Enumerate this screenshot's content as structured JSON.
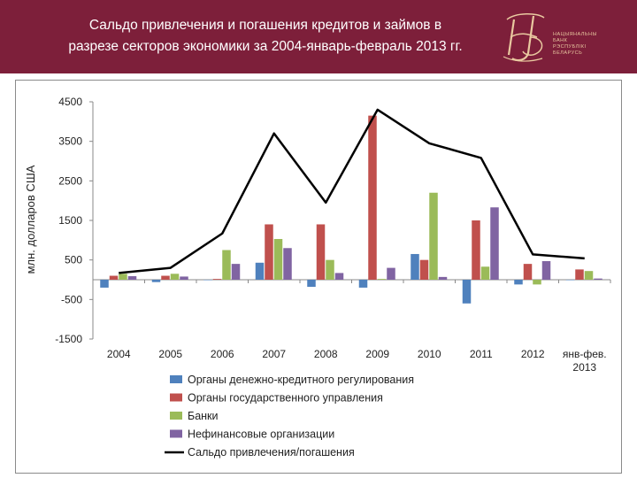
{
  "header": {
    "title_line1": "Сальдо привлечения и погашения кредитов и займов в",
    "title_line2": "разрезе секторов экономики за 2004-январь-февраль 2013 гг.",
    "logo_monogram": "НБ",
    "logo_lines": [
      "НАЦЫЯНАЛЬНЫ",
      "БАНК",
      "РЭСПУБЛІКІ",
      "БЕЛАРУСЬ"
    ]
  },
  "colors": {
    "header_bg": "#7d1f3a",
    "series1": "#4f81bd",
    "series2": "#c0504d",
    "series3": "#9bbb59",
    "series4": "#8064a2",
    "line": "#000000"
  },
  "chart_data": {
    "type": "bar",
    "ylabel": "млн. долларов США",
    "ylim": [
      -1500,
      4500
    ],
    "yticks": [
      4500,
      3500,
      2500,
      1500,
      500,
      -500,
      -1500
    ],
    "grid": false,
    "legend_position": "bottom",
    "categories": [
      "2004",
      "2005",
      "2006",
      "2007",
      "2008",
      "2009",
      "2010",
      "2011",
      "2012",
      "янв-фев. 2013"
    ],
    "series": [
      {
        "name": "Органы денежно-кредитного регулирования",
        "type": "bar",
        "color": "#4f81bd",
        "values": [
          -200,
          -60,
          0,
          430,
          -180,
          -200,
          650,
          -600,
          -120,
          0
        ]
      },
      {
        "name": "Органы государственного управления",
        "type": "bar",
        "color": "#c0504d",
        "values": [
          100,
          100,
          20,
          1400,
          1400,
          4150,
          500,
          1500,
          400,
          260
        ]
      },
      {
        "name": "Банки",
        "type": "bar",
        "color": "#9bbb59",
        "values": [
          150,
          150,
          750,
          1030,
          500,
          20,
          2200,
          330,
          -120,
          220
        ]
      },
      {
        "name": "Нефинансовые организации",
        "type": "bar",
        "color": "#8064a2",
        "values": [
          90,
          80,
          400,
          800,
          170,
          300,
          70,
          1830,
          470,
          30
        ]
      },
      {
        "name": "Сальдо привлечения/погашения",
        "type": "line",
        "color": "#000000",
        "values": [
          170,
          300,
          1170,
          3700,
          1950,
          4300,
          3450,
          3080,
          640,
          540
        ]
      }
    ]
  }
}
